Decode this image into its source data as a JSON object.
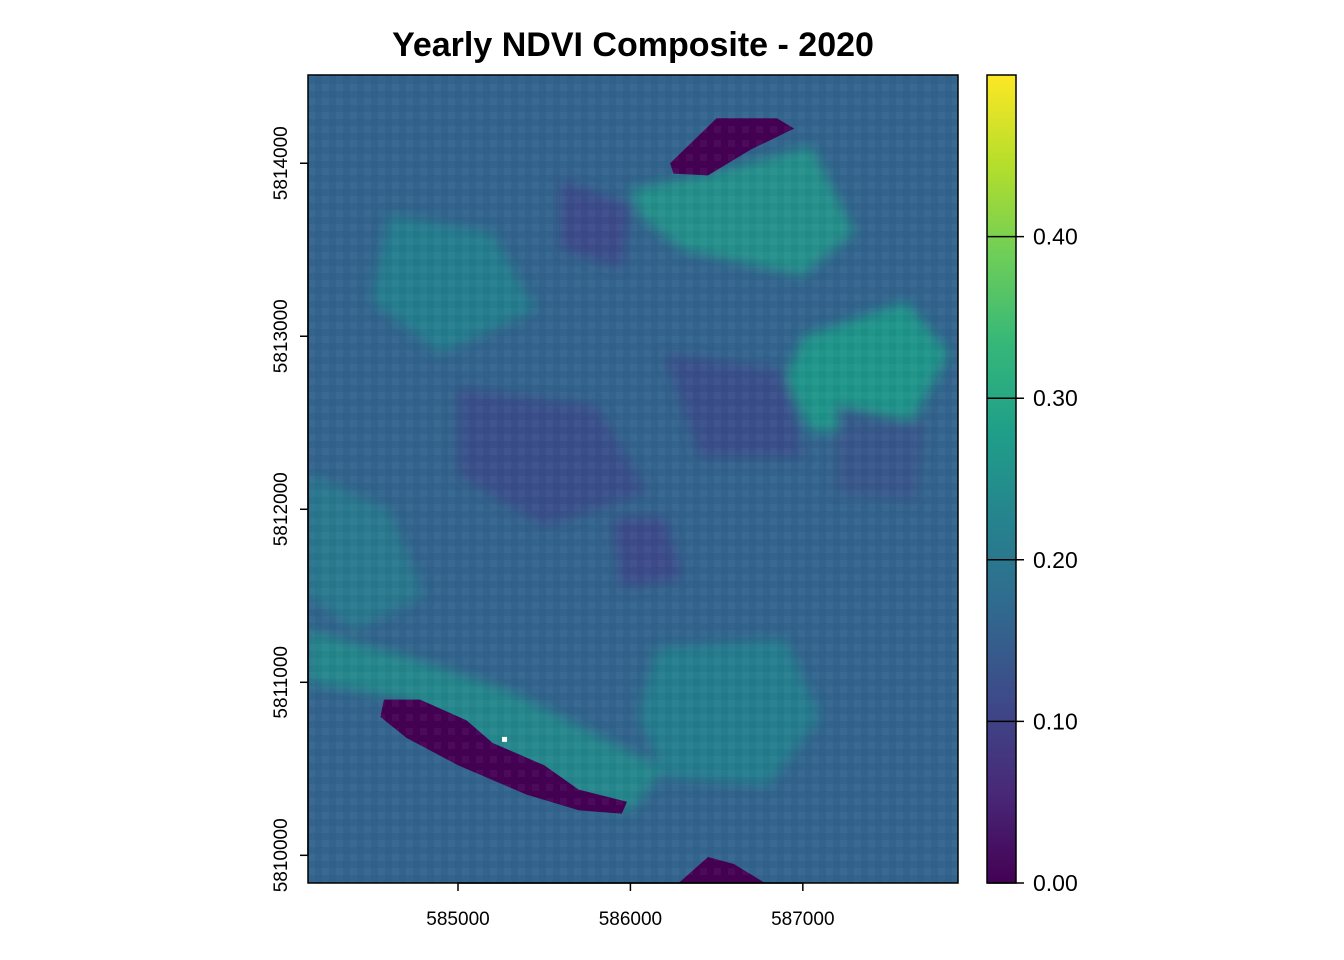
{
  "chart_data": {
    "type": "heatmap",
    "title": "Yearly NDVI Composite - 2020",
    "xlabel": "",
    "ylabel": "",
    "xlim": [
      584130,
      587900
    ],
    "ylim": [
      5809840,
      5814510
    ],
    "x_ticks": [
      585000,
      586000,
      587000
    ],
    "x_tick_labels": [
      "585000",
      "586000",
      "587000"
    ],
    "y_ticks": [
      5810000,
      5811000,
      5812000,
      5813000,
      5814000
    ],
    "y_tick_labels": [
      "5810000",
      "5811000",
      "5812000",
      "5813000",
      "5814000"
    ],
    "colorbar": {
      "palette": "viridis",
      "range": [
        0,
        0.5
      ],
      "ticks": [
        0,
        0.1,
        0.2,
        0.3,
        0.4
      ],
      "tick_labels": [
        "0.00",
        "0.10",
        "0.20",
        "0.30",
        "0.40"
      ],
      "colors": [
        "#440154",
        "#482878",
        "#3e4989",
        "#31688e",
        "#26828e",
        "#1f9e89",
        "#35b779",
        "#6ece58",
        "#b5de2b",
        "#fde725"
      ]
    },
    "background_ndvi": 0.16,
    "features": [
      {
        "kind": "water",
        "ndvi": 0.0,
        "polygon": [
          [
            584570,
            5810900
          ],
          [
            584780,
            5810900
          ],
          [
            585050,
            5810780
          ],
          [
            585200,
            5810650
          ],
          [
            585500,
            5810520
          ],
          [
            585700,
            5810380
          ],
          [
            585980,
            5810310
          ],
          [
            585950,
            5810240
          ],
          [
            585700,
            5810260
          ],
          [
            585400,
            5810350
          ],
          [
            585000,
            5810520
          ],
          [
            584700,
            5810680
          ],
          [
            584550,
            5810800
          ]
        ]
      },
      {
        "kind": "water",
        "ndvi": 0.0,
        "polygon": [
          [
            586230,
            5814000
          ],
          [
            586500,
            5814260
          ],
          [
            586850,
            5814260
          ],
          [
            586950,
            5814200
          ],
          [
            586700,
            5814080
          ],
          [
            586450,
            5813930
          ],
          [
            586250,
            5813940
          ]
        ]
      },
      {
        "kind": "water",
        "ndvi": 0.0,
        "polygon": [
          [
            586280,
            5809840
          ],
          [
            586450,
            5809990
          ],
          [
            586600,
            5809950
          ],
          [
            586780,
            5809840
          ]
        ]
      },
      {
        "kind": "vegetation",
        "ndvi": 0.26,
        "polygon": [
          [
            586000,
            5813850
          ],
          [
            586500,
            5813950
          ],
          [
            587050,
            5814100
          ],
          [
            587300,
            5813600
          ],
          [
            587000,
            5813350
          ],
          [
            586300,
            5813500
          ],
          [
            586050,
            5813700
          ]
        ]
      },
      {
        "kind": "vegetation",
        "ndvi": 0.27,
        "polygon": [
          [
            587000,
            5813000
          ],
          [
            587600,
            5813200
          ],
          [
            587850,
            5812900
          ],
          [
            587600,
            5812450
          ],
          [
            587050,
            5812450
          ],
          [
            586900,
            5812750
          ]
        ]
      },
      {
        "kind": "vegetation",
        "ndvi": 0.24,
        "polygon": [
          [
            584130,
            5811300
          ],
          [
            584700,
            5811150
          ],
          [
            585300,
            5810950
          ],
          [
            585800,
            5810700
          ],
          [
            586200,
            5810500
          ],
          [
            586000,
            5810250
          ],
          [
            585300,
            5810450
          ],
          [
            584700,
            5810900
          ],
          [
            584130,
            5811000
          ]
        ]
      },
      {
        "kind": "vegetation",
        "ndvi": 0.22,
        "polygon": [
          [
            586150,
            5811200
          ],
          [
            586900,
            5811250
          ],
          [
            587100,
            5810800
          ],
          [
            586800,
            5810400
          ],
          [
            586200,
            5810450
          ],
          [
            586050,
            5810800
          ]
        ]
      },
      {
        "kind": "vegetation",
        "ndvi": 0.22,
        "polygon": [
          [
            584600,
            5813700
          ],
          [
            585200,
            5813600
          ],
          [
            585450,
            5813150
          ],
          [
            584900,
            5812900
          ],
          [
            584500,
            5813200
          ]
        ]
      },
      {
        "kind": "vegetation",
        "ndvi": 0.21,
        "polygon": [
          [
            584130,
            5812200
          ],
          [
            584600,
            5812000
          ],
          [
            584800,
            5811500
          ],
          [
            584400,
            5811300
          ],
          [
            584130,
            5811500
          ]
        ]
      },
      {
        "kind": "bare",
        "ndvi": 0.11,
        "polygon": [
          [
            585600,
            5813900
          ],
          [
            586000,
            5813750
          ],
          [
            585950,
            5813400
          ],
          [
            585600,
            5813500
          ]
        ]
      },
      {
        "kind": "bare",
        "ndvi": 0.11,
        "polygon": [
          [
            585900,
            5811950
          ],
          [
            586200,
            5811950
          ],
          [
            586300,
            5811600
          ],
          [
            585950,
            5811550
          ]
        ]
      },
      {
        "kind": "bare",
        "ndvi": 0.12,
        "polygon": [
          [
            585000,
            5812700
          ],
          [
            585800,
            5812600
          ],
          [
            586100,
            5812100
          ],
          [
            585500,
            5811900
          ],
          [
            585000,
            5812200
          ]
        ]
      },
      {
        "kind": "bare",
        "ndvi": 0.12,
        "polygon": [
          [
            586200,
            5812900
          ],
          [
            586900,
            5812800
          ],
          [
            587000,
            5812300
          ],
          [
            586400,
            5812300
          ]
        ]
      },
      {
        "kind": "bare",
        "ndvi": 0.13,
        "polygon": [
          [
            587200,
            5812600
          ],
          [
            587700,
            5812500
          ],
          [
            587650,
            5812050
          ],
          [
            587200,
            5812100
          ]
        ]
      }
    ],
    "missing_pixel": {
      "x": 585270,
      "y": 5810670,
      "color": "#ffffff"
    }
  }
}
